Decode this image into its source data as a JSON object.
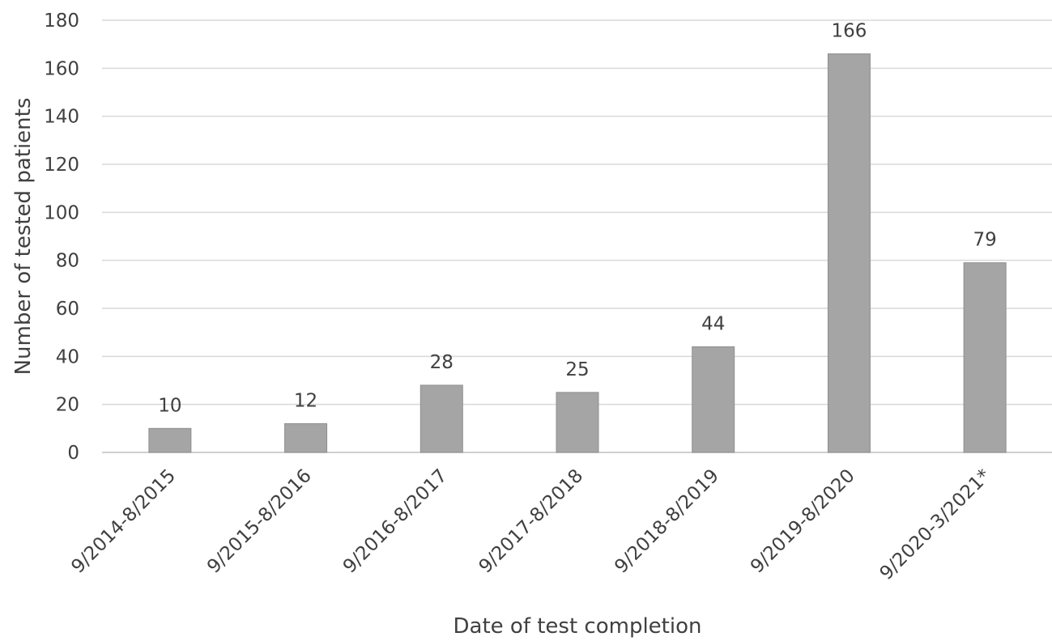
{
  "chart_data": {
    "type": "bar",
    "title": "",
    "xlabel": "Date of test completion",
    "ylabel": "Number of tested patients",
    "categories": [
      "9/2014-8/2015",
      "9/2015-8/2016",
      "9/2016-8/2017",
      "9/2017-8/2018",
      "9/2018-8/2019",
      "9/2019-8/2020",
      "9/2020-3/2021*"
    ],
    "values": [
      10,
      12,
      28,
      25,
      44,
      166,
      79
    ],
    "data_labels": [
      "10",
      "12",
      "28",
      "25",
      "44",
      "166",
      "79"
    ],
    "ylim": [
      0,
      180
    ],
    "yticks": [
      0,
      20,
      40,
      60,
      80,
      100,
      120,
      140,
      160,
      180
    ],
    "grid": true,
    "legend": "none",
    "bar_color": "#a5a5a5"
  }
}
